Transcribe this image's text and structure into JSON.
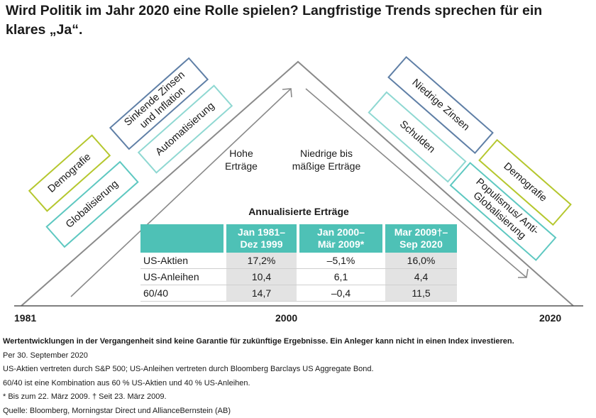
{
  "title": "Wird Politik im Jahr 2020 eine Rolle spielen? Langfristige Trends sprechen für ein klares „Ja“.",
  "colors": {
    "green": "#b5c72e",
    "teal": "#5ec8c1",
    "blue": "#5f7fa6",
    "table_header": "#4ec1b6",
    "shade": "#e3e3e3",
    "line": "#8a8a8a"
  },
  "left_boxes": {
    "demografie": "Demografie",
    "globalisierung": "Globalisierung",
    "sinkende_zinsen": "Sinkende Zinsen und Inflation",
    "automatisierung": "Automatisierung"
  },
  "right_boxes": {
    "niedrige_zinsen": "Niedrige Zinsen",
    "schulden": "Schulden",
    "demografie": "Demografie",
    "populismus": "Populismus/ Anti-Globalisierung"
  },
  "phases": {
    "left_line1": "Hohe",
    "left_line2": "Erträge",
    "right_line1": "Niedrige bis",
    "right_line2": "mäßige Erträge"
  },
  "timeline": {
    "start": "1981",
    "mid": "2000",
    "end": "2020"
  },
  "table": {
    "title": "Annualisierte Erträge",
    "headers": [
      {
        "line1": "Jan 1981–",
        "line2": "Dez 1999"
      },
      {
        "line1": "Jan 2000–",
        "line2": "Mär 2009*"
      },
      {
        "line1": "Mar 2009†–",
        "line2": "Sep 2020"
      }
    ],
    "rows": [
      {
        "label": "US-Aktien",
        "values": [
          "17,2%",
          "–5,1%",
          "16,0%"
        ]
      },
      {
        "label": "US-Anleihen",
        "values": [
          "10,4",
          "6,1",
          "4,4"
        ]
      },
      {
        "label": "60/40",
        "values": [
          "14,7",
          "–0,4",
          "11,5"
        ]
      }
    ]
  },
  "notes": {
    "disclaimer": "Wertentwicklungen in der Vergangenheit sind keine Garantie für zukünftige Ergebnisse. Ein Anleger kann nicht in einen Index investieren.",
    "as_of": "Per 30. September 2020",
    "definition": "US-Aktien vertreten durch S&P 500; US-Anleihen vertreten durch Bloomberg Barclays US Aggregate Bond.",
    "combo": "60/40 ist eine Kombination aus 60 % US-Aktien und 40 % US-Anleihen.",
    "footnote": "* Bis zum 22. März 2009. † Seit 23. März 2009.",
    "source": "Quelle: Bloomberg, Morningstar Direct und AllianceBernstein (AB)"
  }
}
